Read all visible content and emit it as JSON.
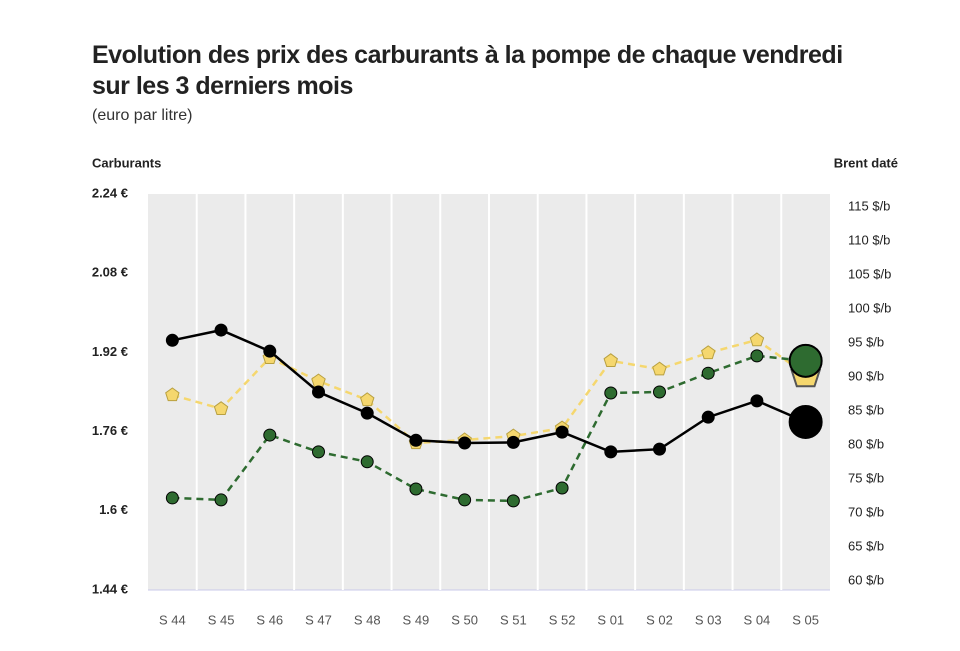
{
  "chart_data": {
    "type": "line",
    "title": "Evolution des prix des carburants à la pompe de chaque vendredi sur les 3 derniers mois",
    "subtitle": "(euro par litre)",
    "y_label": "Carburants",
    "y2_label": "Brent daté",
    "categories": [
      "S 44",
      "S 45",
      "S 46",
      "S 47",
      "S 48",
      "S 49",
      "S 50",
      "S 51",
      "S 52",
      "S 01",
      "S 02",
      "S 03",
      "S 04",
      "S 05"
    ],
    "ylim": [
      1.44,
      2.24
    ],
    "yticks": [
      {
        "value": 1.44,
        "label": "1.44 €"
      },
      {
        "value": 1.6,
        "label": "1.6 €"
      },
      {
        "value": 1.76,
        "label": "1.76 €"
      },
      {
        "value": 1.92,
        "label": "1.92 €"
      },
      {
        "value": 2.08,
        "label": "2.08 €"
      },
      {
        "value": 2.24,
        "label": "2.24 €"
      }
    ],
    "y2lim": [
      58.7,
      116.9
    ],
    "y2ticks": [
      {
        "value": 60,
        "label": "60 $/b"
      },
      {
        "value": 65,
        "label": "65 $/b"
      },
      {
        "value": 70,
        "label": "70 $/b"
      },
      {
        "value": 75,
        "label": "75 $/b"
      },
      {
        "value": 80,
        "label": "80 $/b"
      },
      {
        "value": 85,
        "label": "85 $/b"
      },
      {
        "value": 90,
        "label": "90 $/b"
      },
      {
        "value": 95,
        "label": "95 $/b"
      },
      {
        "value": 100,
        "label": "100 $/b"
      },
      {
        "value": 105,
        "label": "105 $/b"
      },
      {
        "value": 110,
        "label": "110 $/b"
      },
      {
        "value": 115,
        "label": "115 $/b"
      }
    ],
    "series": [
      {
        "color": "#f5d76e",
        "marker": "pentagon",
        "dashed": true,
        "values": [
          1.834,
          1.806,
          1.909,
          1.862,
          1.824,
          1.737,
          1.743,
          1.751,
          1.767,
          1.903,
          1.886,
          1.919,
          1.945,
          1.876
        ]
      },
      {
        "color": "#2e6b30",
        "marker": "circle",
        "dashed": true,
        "values": [
          1.626,
          1.622,
          1.753,
          1.719,
          1.699,
          1.644,
          1.622,
          1.62,
          1.646,
          1.838,
          1.84,
          1.878,
          1.913,
          1.903
        ]
      },
      {
        "color": "#000000",
        "marker": "circle",
        "dashed": false,
        "axis": "y2",
        "values": [
          95.4,
          96.9,
          93.8,
          87.8,
          84.7,
          80.7,
          80.3,
          80.4,
          81.9,
          79.0,
          79.4,
          84.1,
          86.5,
          83.4
        ]
      }
    ]
  }
}
